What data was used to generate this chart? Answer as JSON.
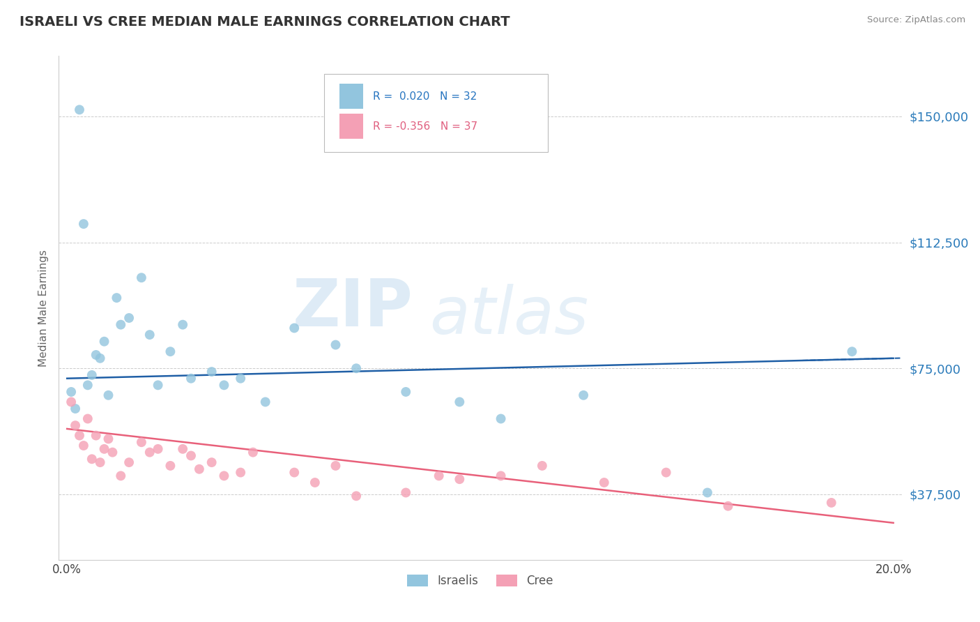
{
  "title": "ISRAELI VS CREE MEDIAN MALE EARNINGS CORRELATION CHART",
  "source": "Source: ZipAtlas.com",
  "ylabel": "Median Male Earnings",
  "xlim": [
    -0.002,
    0.202
  ],
  "ylim": [
    18000,
    168000
  ],
  "yticks": [
    37500,
    75000,
    112500,
    150000
  ],
  "ytick_labels": [
    "$37,500",
    "$75,000",
    "$112,500",
    "$150,000"
  ],
  "xticks": [
    0.0,
    0.05,
    0.1,
    0.15,
    0.2
  ],
  "xtick_labels": [
    "0.0%",
    "",
    "",
    "",
    "20.0%"
  ],
  "israeli_color": "#92c5de",
  "cree_color": "#f4a0b5",
  "israeli_line_color": "#1f5fa6",
  "cree_line_color": "#e8607a",
  "watermark_zip": "ZIP",
  "watermark_atlas": "atlas",
  "israeli_x": [
    0.001,
    0.002,
    0.003,
    0.004,
    0.005,
    0.006,
    0.007,
    0.008,
    0.009,
    0.01,
    0.012,
    0.013,
    0.015,
    0.018,
    0.02,
    0.022,
    0.025,
    0.028,
    0.03,
    0.035,
    0.038,
    0.042,
    0.048,
    0.055,
    0.065,
    0.07,
    0.082,
    0.095,
    0.105,
    0.125,
    0.155,
    0.19
  ],
  "israeli_y": [
    68000,
    63000,
    152000,
    118000,
    70000,
    73000,
    79000,
    78000,
    83000,
    67000,
    96000,
    88000,
    90000,
    102000,
    85000,
    70000,
    80000,
    88000,
    72000,
    74000,
    70000,
    72000,
    65000,
    87000,
    82000,
    75000,
    68000,
    65000,
    60000,
    67000,
    38000,
    80000
  ],
  "cree_x": [
    0.001,
    0.002,
    0.003,
    0.004,
    0.005,
    0.006,
    0.007,
    0.008,
    0.009,
    0.01,
    0.011,
    0.013,
    0.015,
    0.018,
    0.02,
    0.022,
    0.025,
    0.028,
    0.03,
    0.032,
    0.035,
    0.038,
    0.042,
    0.045,
    0.055,
    0.06,
    0.065,
    0.07,
    0.082,
    0.09,
    0.095,
    0.105,
    0.115,
    0.13,
    0.145,
    0.16,
    0.185
  ],
  "cree_y": [
    65000,
    58000,
    55000,
    52000,
    60000,
    48000,
    55000,
    47000,
    51000,
    54000,
    50000,
    43000,
    47000,
    53000,
    50000,
    51000,
    46000,
    51000,
    49000,
    45000,
    47000,
    43000,
    44000,
    50000,
    44000,
    41000,
    46000,
    37000,
    38000,
    43000,
    42000,
    43000,
    46000,
    41000,
    44000,
    34000,
    35000
  ]
}
